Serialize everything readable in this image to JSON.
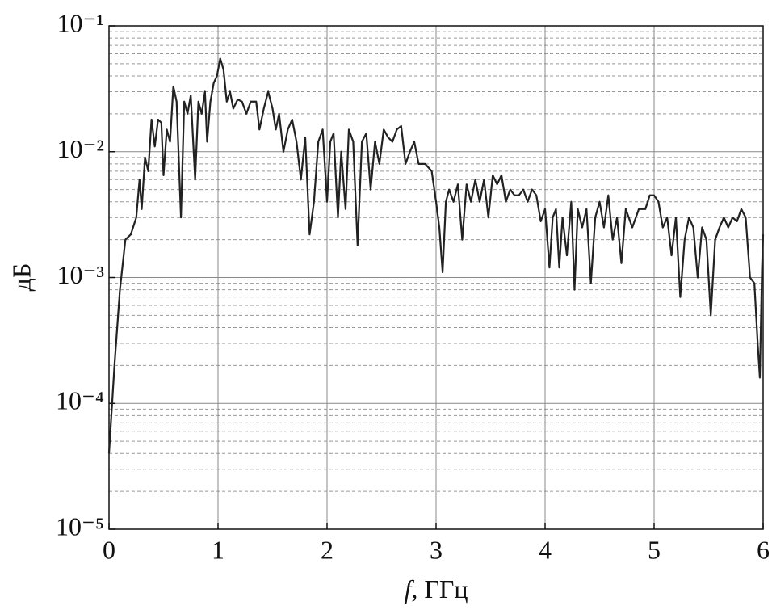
{
  "chart_data": {
    "type": "line",
    "x_label_italic": "f",
    "x_label": ", ГГц",
    "y_label": "дБ",
    "log_y": true,
    "grid": true,
    "minor_grid": true,
    "xlim": [
      0,
      6
    ],
    "xticks": [
      0,
      1,
      2,
      3,
      4,
      5,
      6
    ],
    "ylim": [
      1e-05,
      0.1
    ],
    "yticks": [
      {
        "value": 1e-05,
        "label": "10⁻⁵"
      },
      {
        "value": 0.0001,
        "label": "10⁻⁴"
      },
      {
        "value": 0.001,
        "label": "10⁻³"
      },
      {
        "value": 0.01,
        "label": "10⁻²"
      },
      {
        "value": 0.1,
        "label": "10⁻¹"
      }
    ],
    "series": [
      {
        "color": "#222222",
        "x": [
          0,
          0.05,
          0.1,
          0.15,
          0.2,
          0.25,
          0.28,
          0.3,
          0.33,
          0.36,
          0.39,
          0.42,
          0.45,
          0.48,
          0.5,
          0.53,
          0.56,
          0.59,
          0.62,
          0.66,
          0.69,
          0.72,
          0.75,
          0.79,
          0.82,
          0.85,
          0.88,
          0.9,
          0.93,
          0.96,
          0.99,
          1.02,
          1.05,
          1.08,
          1.11,
          1.14,
          1.18,
          1.22,
          1.26,
          1.3,
          1.35,
          1.38,
          1.42,
          1.46,
          1.5,
          1.53,
          1.56,
          1.6,
          1.64,
          1.68,
          1.72,
          1.76,
          1.8,
          1.84,
          1.88,
          1.92,
          1.96,
          2.0,
          2.03,
          2.06,
          2.1,
          2.13,
          2.17,
          2.2,
          2.24,
          2.28,
          2.32,
          2.36,
          2.4,
          2.44,
          2.48,
          2.52,
          2.56,
          2.6,
          2.64,
          2.68,
          2.72,
          2.76,
          2.8,
          2.84,
          2.9,
          2.96,
          3.0,
          3.03,
          3.06,
          3.09,
          3.12,
          3.16,
          3.2,
          3.24,
          3.28,
          3.32,
          3.36,
          3.4,
          3.44,
          3.48,
          3.52,
          3.56,
          3.6,
          3.64,
          3.68,
          3.72,
          3.76,
          3.8,
          3.84,
          3.88,
          3.92,
          3.96,
          4.0,
          4.04,
          4.07,
          4.1,
          4.13,
          4.16,
          4.2,
          4.24,
          4.27,
          4.3,
          4.34,
          4.38,
          4.42,
          4.46,
          4.5,
          4.54,
          4.58,
          4.62,
          4.66,
          4.7,
          4.74,
          4.8,
          4.86,
          4.92,
          4.96,
          5.0,
          5.04,
          5.08,
          5.12,
          5.16,
          5.2,
          5.24,
          5.28,
          5.32,
          5.36,
          5.4,
          5.44,
          5.48,
          5.52,
          5.56,
          5.6,
          5.64,
          5.68,
          5.72,
          5.76,
          5.8,
          5.84,
          5.88,
          5.92,
          5.95,
          5.97,
          5.99,
          6.0
        ],
        "values": [
          4e-05,
          0.0002,
          0.0008,
          0.002,
          0.0022,
          0.003,
          0.006,
          0.0035,
          0.009,
          0.007,
          0.018,
          0.011,
          0.018,
          0.017,
          0.0065,
          0.015,
          0.012,
          0.033,
          0.025,
          0.003,
          0.025,
          0.02,
          0.028,
          0.006,
          0.025,
          0.02,
          0.03,
          0.012,
          0.025,
          0.035,
          0.04,
          0.055,
          0.045,
          0.025,
          0.03,
          0.022,
          0.026,
          0.025,
          0.02,
          0.025,
          0.025,
          0.015,
          0.022,
          0.03,
          0.022,
          0.015,
          0.02,
          0.01,
          0.015,
          0.018,
          0.012,
          0.006,
          0.013,
          0.0022,
          0.004,
          0.012,
          0.015,
          0.004,
          0.012,
          0.014,
          0.003,
          0.01,
          0.0035,
          0.015,
          0.012,
          0.0018,
          0.012,
          0.014,
          0.005,
          0.012,
          0.008,
          0.015,
          0.013,
          0.012,
          0.015,
          0.016,
          0.008,
          0.01,
          0.012,
          0.008,
          0.008,
          0.007,
          0.004,
          0.0025,
          0.0011,
          0.004,
          0.005,
          0.004,
          0.0055,
          0.002,
          0.0055,
          0.004,
          0.006,
          0.004,
          0.006,
          0.003,
          0.0065,
          0.0055,
          0.0065,
          0.004,
          0.005,
          0.0045,
          0.0045,
          0.005,
          0.004,
          0.005,
          0.0045,
          0.0028,
          0.0035,
          0.0012,
          0.003,
          0.0035,
          0.0012,
          0.003,
          0.0015,
          0.004,
          0.0008,
          0.0035,
          0.0025,
          0.0035,
          0.0009,
          0.003,
          0.004,
          0.0025,
          0.0045,
          0.002,
          0.003,
          0.0013,
          0.0035,
          0.0025,
          0.0035,
          0.0035,
          0.0045,
          0.0045,
          0.004,
          0.0025,
          0.003,
          0.0015,
          0.003,
          0.0007,
          0.002,
          0.003,
          0.0025,
          0.001,
          0.0025,
          0.002,
          0.0005,
          0.002,
          0.0025,
          0.003,
          0.0025,
          0.003,
          0.0028,
          0.0035,
          0.003,
          0.001,
          0.0009,
          0.0003,
          0.00016,
          0.0012,
          0.0022
        ]
      }
    ]
  }
}
